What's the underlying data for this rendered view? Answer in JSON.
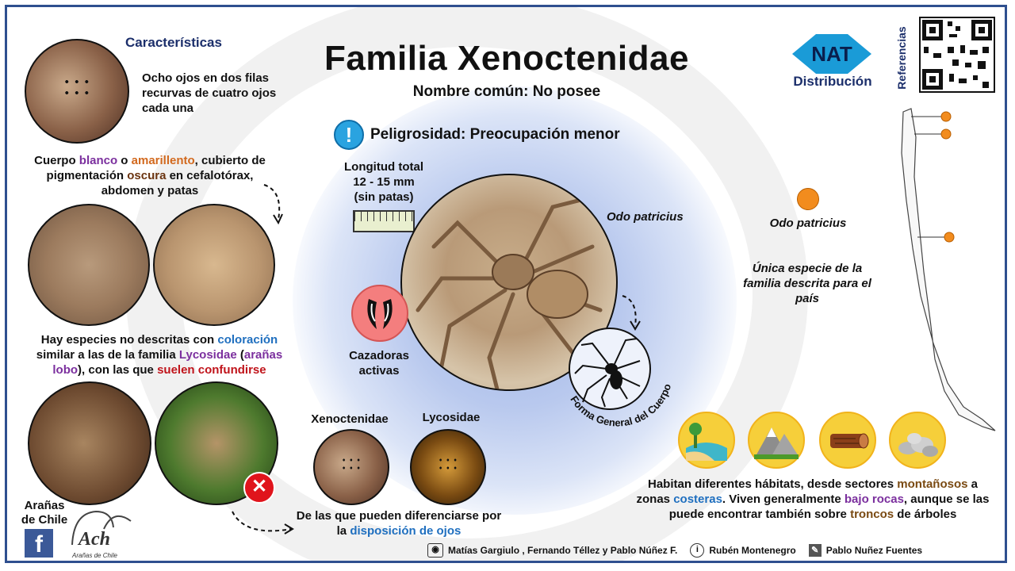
{
  "title": "Familia Xenoctenidae",
  "common_name": "Nombre común: No posee",
  "danger": {
    "label": "Peligrosidad:",
    "value": "Preocupación menor"
  },
  "characteristics": {
    "heading": "Características",
    "eyes_text": "Ocho ojos en dos filas recurvas de cuatro ojos cada una",
    "body_text": {
      "p1": "Cuerpo ",
      "blanco": "blanco",
      "p2": " o ",
      "amarillento": "amarillento",
      "p3": ", cubierto de pigmentación ",
      "oscura": "oscura",
      "p4": " en cefalotórax, abdomen y patas"
    },
    "confusion_text": {
      "p1": "Hay especies no descritas con ",
      "coloracion": "coloración",
      "p2": " similar a las de la familia ",
      "lycosidae": "Lycosidae",
      "p3": " (",
      "aranas_lobo": "arañas lobo",
      "p4": "), con las que ",
      "confundirse": "suelen confundirse"
    }
  },
  "length": {
    "line1": "Longitud total",
    "line2": "12 - 15 mm",
    "line3": "(sin patas)"
  },
  "hunting": {
    "line1": "Cazadoras",
    "line2": "activas"
  },
  "main_species": "Odo patricius",
  "body_shape_label": "Forma General del Cuerpo",
  "compare": {
    "left": "Xenoctenidae",
    "right": "Lycosidae",
    "text_p1": "De las que pueden diferenciarse por la ",
    "text_highlight": "disposición de ojos"
  },
  "logo": {
    "text": "NAT",
    "label": "Distribución",
    "colors": {
      "accent": "#1a9bd7"
    }
  },
  "references_label": "Referencias",
  "distribution": {
    "species": "Odo patricius",
    "note": "Única especie de la familia descrita para el país",
    "marker_color": "#f28c1e"
  },
  "habitat": {
    "p1": "Habitan diferentes hábitats, desde sectores ",
    "montanosos": "montañosos",
    "p2": " a zonas ",
    "costeras": "costeras",
    "p3": ". Viven generalmente ",
    "bajo_rocas": "bajo rocas",
    "p4": ", aunque se las puede encontrar también sobre ",
    "troncos": "troncos",
    "p5": " de árboles",
    "icons": [
      "beach-icon",
      "mountain-icon",
      "log-icon",
      "rocks-icon"
    ]
  },
  "brand": {
    "line1": "Arañas",
    "line2": "de Chile",
    "logo_text": "Arañas de Chile"
  },
  "credits": {
    "photo": "Matías Gargiulo , Fernando Téllez y Pablo Núñez F.",
    "info": "Rubén Montenegro",
    "design": "Pablo Nuñez Fuentes"
  }
}
